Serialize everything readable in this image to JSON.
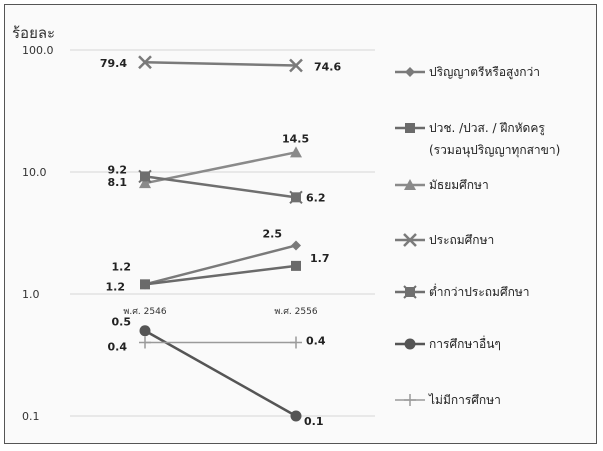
{
  "chart_data": {
    "type": "line",
    "ylabel": "ร้อยละ",
    "yscale": "log",
    "ylim": [
      0.1,
      100
    ],
    "yticks": [
      "0.1",
      "1.0",
      "10.0",
      "100.0"
    ],
    "categories": [
      "พ.ศ. 2546",
      "พ.ศ. 2556"
    ],
    "legend_position": "right",
    "series": [
      {
        "name": "ปริญญาตรีหรือสูงกว่า",
        "values": [
          1.2,
          2.5
        ],
        "labels": [
          "1.2",
          "2.5"
        ],
        "marker": "diamond",
        "color": "#7a7a7a"
      },
      {
        "name": "ปวช. /ปวส. / ฝึกหัดครู (รวมอนุปริญญาทุกสาขา)",
        "values": [
          1.2,
          1.7
        ],
        "labels": [
          "1.2",
          "1.7"
        ],
        "marker": "square",
        "color": "#6a6a6a"
      },
      {
        "name": "มัธยมศึกษา",
        "values": [
          8.1,
          14.5
        ],
        "labels": [
          "8.1",
          "14.5"
        ],
        "marker": "triangle",
        "color": "#8a8a8a"
      },
      {
        "name": "ประถมศึกษา",
        "values": [
          79.4,
          74.6
        ],
        "labels": [
          "79.4",
          "74.6"
        ],
        "marker": "x",
        "color": "#7a7a7a"
      },
      {
        "name": "ต่ำกว่าประถมศึกษา",
        "values": [
          9.2,
          6.2
        ],
        "labels": [
          "9.2",
          "6.2"
        ],
        "marker": "xsquare",
        "color": "#6f6f6f"
      },
      {
        "name": "การศึกษาอื่นๆ",
        "values": [
          0.5,
          0.1
        ],
        "labels": [
          "0.5",
          "0.1"
        ],
        "marker": "circle",
        "color": "#555555"
      },
      {
        "name": "ไม่มีการศึกษา",
        "values": [
          0.4,
          0.4
        ],
        "labels": [
          "0.4",
          "0.4"
        ],
        "marker": "plus",
        "color": "#9a9a9a"
      }
    ]
  }
}
